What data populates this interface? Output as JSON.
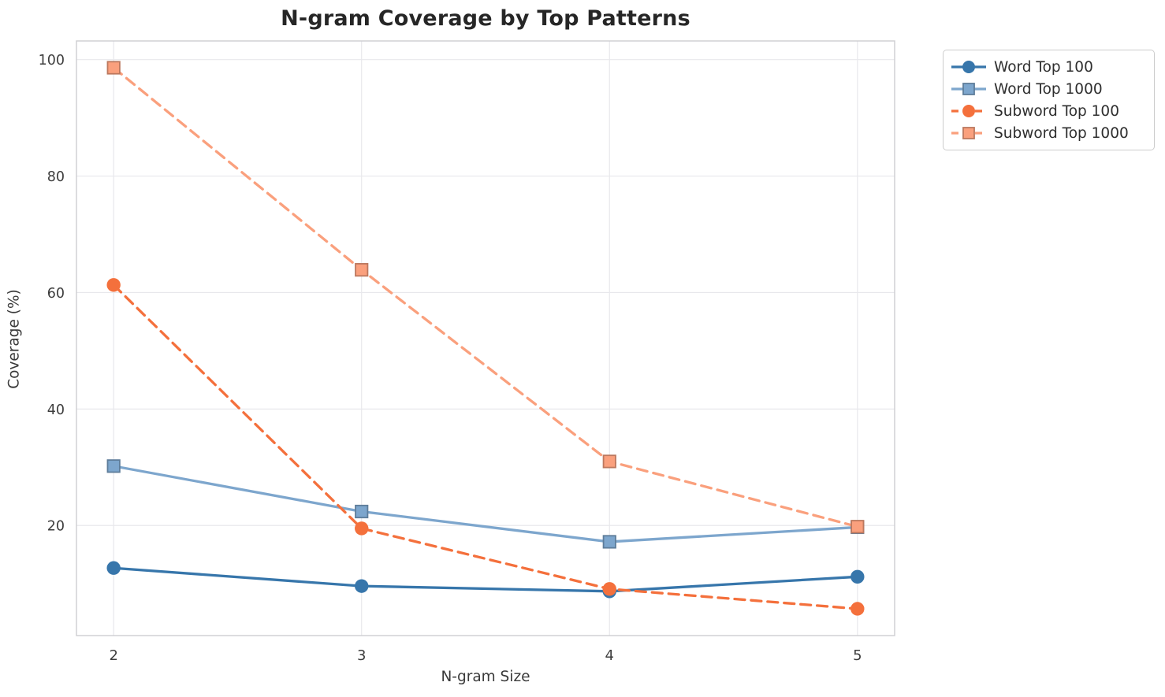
{
  "chart_data": {
    "type": "line",
    "title": "N-gram Coverage by Top Patterns",
    "xlabel": "N-gram Size",
    "ylabel": "Coverage (%)",
    "x": [
      2,
      3,
      4,
      5
    ],
    "xticks": [
      2,
      3,
      4,
      5
    ],
    "yticks": [
      20,
      40,
      60,
      80,
      100
    ],
    "xlim": [
      1.85,
      5.15
    ],
    "ylim": [
      1.1,
      103.2
    ],
    "grid": true,
    "legend_position": "outside-upper-right",
    "series": [
      {
        "name": "Word Top 100",
        "values": [
          12.7,
          9.6,
          8.7,
          11.2
        ],
        "color": "#3776AB",
        "line_style": "solid",
        "marker": "circle"
      },
      {
        "name": "Word Top 1000",
        "values": [
          30.2,
          22.4,
          17.2,
          19.7
        ],
        "color": "#7DA6CD",
        "line_style": "solid",
        "marker": "square"
      },
      {
        "name": "Subword Top 100",
        "values": [
          61.3,
          19.5,
          9.1,
          5.7
        ],
        "color": "#F4703C",
        "line_style": "dashed",
        "marker": "circle"
      },
      {
        "name": "Subword Top 1000",
        "values": [
          98.6,
          63.9,
          31.0,
          19.8
        ],
        "color": "#FAA07D",
        "line_style": "dashed",
        "marker": "square"
      }
    ]
  },
  "style_colors": {
    "grid": "#e8e8ec",
    "spine": "#cdcdd1",
    "tick_label": "#3d3d3d"
  }
}
